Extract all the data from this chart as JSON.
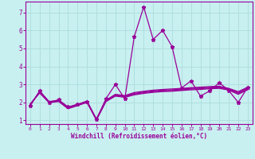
{
  "xlabel": "Windchill (Refroidissement éolien,°C)",
  "background_color": "#c8f0f0",
  "grid_color": "#b0dede",
  "line_color": "#990099",
  "xlim": [
    -0.5,
    23.5
  ],
  "ylim": [
    0.8,
    7.6
  ],
  "xticks": [
    0,
    1,
    2,
    3,
    4,
    5,
    6,
    7,
    8,
    9,
    10,
    11,
    12,
    13,
    14,
    15,
    16,
    17,
    18,
    19,
    20,
    21,
    22,
    23
  ],
  "yticks": [
    1,
    2,
    3,
    4,
    5,
    6,
    7
  ],
  "series1": [
    1.8,
    2.65,
    2.0,
    2.15,
    1.75,
    1.9,
    2.05,
    1.05,
    2.2,
    3.0,
    2.2,
    5.65,
    7.3,
    5.5,
    6.0,
    5.1,
    2.8,
    3.2,
    2.35,
    2.65,
    3.1,
    2.65,
    2.0,
    2.85
  ],
  "series2": [
    1.85,
    2.62,
    2.05,
    2.12,
    1.72,
    1.88,
    2.08,
    1.08,
    2.12,
    2.45,
    2.38,
    2.55,
    2.62,
    2.68,
    2.72,
    2.75,
    2.78,
    2.82,
    2.85,
    2.88,
    2.9,
    2.78,
    2.6,
    2.85
  ],
  "series3": [
    1.88,
    2.58,
    2.02,
    2.1,
    1.7,
    1.86,
    2.04,
    1.06,
    2.1,
    2.42,
    2.35,
    2.5,
    2.58,
    2.64,
    2.68,
    2.7,
    2.74,
    2.78,
    2.8,
    2.84,
    2.86,
    2.75,
    2.55,
    2.8
  ],
  "series4": [
    1.9,
    2.55,
    2.0,
    2.08,
    1.68,
    1.84,
    2.02,
    1.04,
    2.07,
    2.38,
    2.32,
    2.46,
    2.54,
    2.6,
    2.64,
    2.66,
    2.7,
    2.74,
    2.76,
    2.8,
    2.82,
    2.72,
    2.5,
    2.75
  ],
  "series5": [
    1.92,
    2.52,
    1.98,
    2.05,
    1.65,
    1.82,
    2.0,
    1.02,
    2.04,
    2.35,
    2.28,
    2.42,
    2.5,
    2.56,
    2.6,
    2.62,
    2.66,
    2.7,
    2.72,
    2.76,
    2.78,
    2.68,
    2.45,
    2.7
  ]
}
